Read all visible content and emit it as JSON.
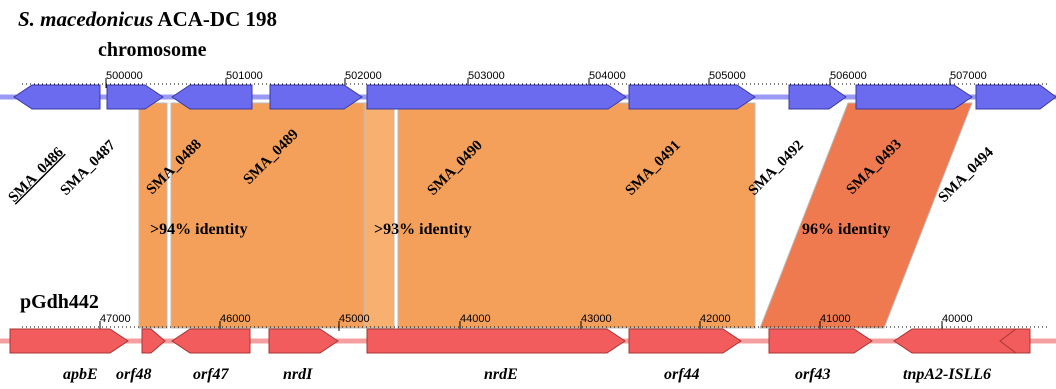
{
  "header": {
    "organism": "S. macedonicus",
    "strain": " ACA-DC 198",
    "replicon": "chromosome"
  },
  "colors": {
    "chromosome_gene": "#6b6bf0",
    "chromosome_backbone": "#9a9af5",
    "plasmid_gene": "#f25c5c",
    "plasmid_backbone": "#f4a0a0",
    "homology_block": "#f5a05a",
    "homology_block_inverted": "#ef7a50"
  },
  "chromosome": {
    "ticks": [
      "500000",
      "501000",
      "502000",
      "503000",
      "504000",
      "505000",
      "506000",
      "507000"
    ],
    "genes": [
      {
        "label": "SMA_0486",
        "strand": "-",
        "underline": true
      },
      {
        "label": "SMA_0487",
        "strand": "+"
      },
      {
        "label": "SMA_0488",
        "strand": "-"
      },
      {
        "label": "SMA_0489",
        "strand": "+"
      },
      {
        "label": "SMA_0490",
        "strand": "+"
      },
      {
        "label": "SMA_0491",
        "strand": "+"
      },
      {
        "label": "SMA_0492",
        "strand": "+"
      },
      {
        "label": "SMA_0493",
        "strand": "+"
      },
      {
        "label": "SMA_0494",
        "strand": "+"
      }
    ]
  },
  "plasmid": {
    "name": "pGdh442",
    "ticks": [
      "47000",
      "46000",
      "45000",
      "44000",
      "43000",
      "42000",
      "41000",
      "40000"
    ],
    "genes": [
      {
        "label": "apbE",
        "strand": "+"
      },
      {
        "label": "orf48",
        "strand": "+"
      },
      {
        "label": "orf47",
        "strand": "-"
      },
      {
        "label": "nrdI",
        "strand": "+"
      },
      {
        "label": "nrdE",
        "strand": "+"
      },
      {
        "label": "orf44",
        "strand": "+"
      },
      {
        "label": "orf43",
        "strand": "+"
      },
      {
        "label": "tnpA2-ISLL6",
        "strand": "-"
      }
    ]
  },
  "homology": [
    {
      "label": ">94% identity"
    },
    {
      "label": ">93% identity"
    },
    {
      "label": "96% identity"
    }
  ]
}
